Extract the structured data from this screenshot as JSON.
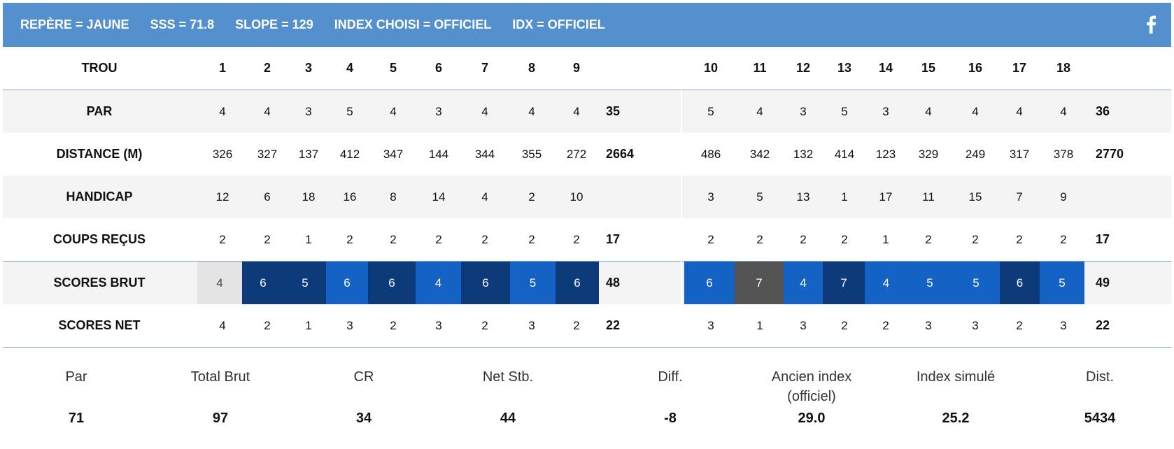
{
  "header": {
    "items": [
      "REPÈRE = JAUNE",
      "SSS = 71.8",
      "SLOPE = 129",
      "INDEX CHOISI = OFFICIEL",
      "IDX = OFFICIEL"
    ],
    "icon": "facebook-icon",
    "background": "#5590ce"
  },
  "table": {
    "labels": {
      "trou": "TROU",
      "par": "PAR",
      "distance": "DISTANCE (M)",
      "handicap": "HANDICAP",
      "coups": "COUPS REÇUS",
      "brut": "SCORES BRUT",
      "net": "SCORES NET"
    },
    "holes_front": [
      "1",
      "2",
      "3",
      "4",
      "5",
      "6",
      "7",
      "8",
      "9"
    ],
    "holes_back": [
      "10",
      "11",
      "12",
      "13",
      "14",
      "15",
      "16",
      "17",
      "18"
    ],
    "par_front": [
      "4",
      "4",
      "3",
      "5",
      "4",
      "3",
      "4",
      "4",
      "4"
    ],
    "par_front_total": "35",
    "par_back": [
      "5",
      "4",
      "3",
      "5",
      "3",
      "4",
      "4",
      "4",
      "4"
    ],
    "par_back_total": "36",
    "distance_front": [
      "326",
      "327",
      "137",
      "412",
      "347",
      "144",
      "344",
      "355",
      "272"
    ],
    "distance_front_total": "2664",
    "distance_back": [
      "486",
      "342",
      "132",
      "414",
      "123",
      "329",
      "249",
      "317",
      "378"
    ],
    "distance_back_total": "2770",
    "handicap_front": [
      "12",
      "6",
      "18",
      "16",
      "8",
      "14",
      "4",
      "2",
      "10"
    ],
    "handicap_back": [
      "3",
      "5",
      "13",
      "1",
      "17",
      "11",
      "15",
      "7",
      "9"
    ],
    "coups_front": [
      "2",
      "2",
      "1",
      "2",
      "2",
      "2",
      "2",
      "2",
      "2"
    ],
    "coups_front_total": "17",
    "coups_back": [
      "2",
      "2",
      "2",
      "2",
      "1",
      "2",
      "2",
      "2",
      "2"
    ],
    "coups_back_total": "17",
    "brut_front": [
      "4",
      "6",
      "5",
      "6",
      "6",
      "4",
      "6",
      "5",
      "6"
    ],
    "brut_front_total": "48",
    "brut_back": [
      "6",
      "7",
      "4",
      "7",
      "4",
      "5",
      "5",
      "6",
      "5"
    ],
    "brut_back_total": "49",
    "net_front": [
      "4",
      "2",
      "1",
      "3",
      "2",
      "3",
      "2",
      "3",
      "2"
    ],
    "net_front_total": "22",
    "net_back": [
      "3",
      "1",
      "3",
      "2",
      "2",
      "3",
      "3",
      "2",
      "3"
    ],
    "net_back_total": "22",
    "score_colors": {
      "light": "#e4e4e4",
      "dark": "#0d3a78",
      "mid": "#1463c4",
      "gray": "#545454"
    }
  },
  "summary": [
    {
      "label": "Par",
      "value": "71"
    },
    {
      "label": "Total Brut",
      "value": "97"
    },
    {
      "label": "CR",
      "value": "34"
    },
    {
      "label": "Net Stb.",
      "value": "44"
    },
    {
      "label": "Diff.",
      "value": "-8"
    },
    {
      "label": "Ancien index (officiel)",
      "value": "29.0"
    },
    {
      "label": "Index simulé",
      "value": "25.2"
    },
    {
      "label": "Dist.",
      "value": "5434"
    }
  ]
}
